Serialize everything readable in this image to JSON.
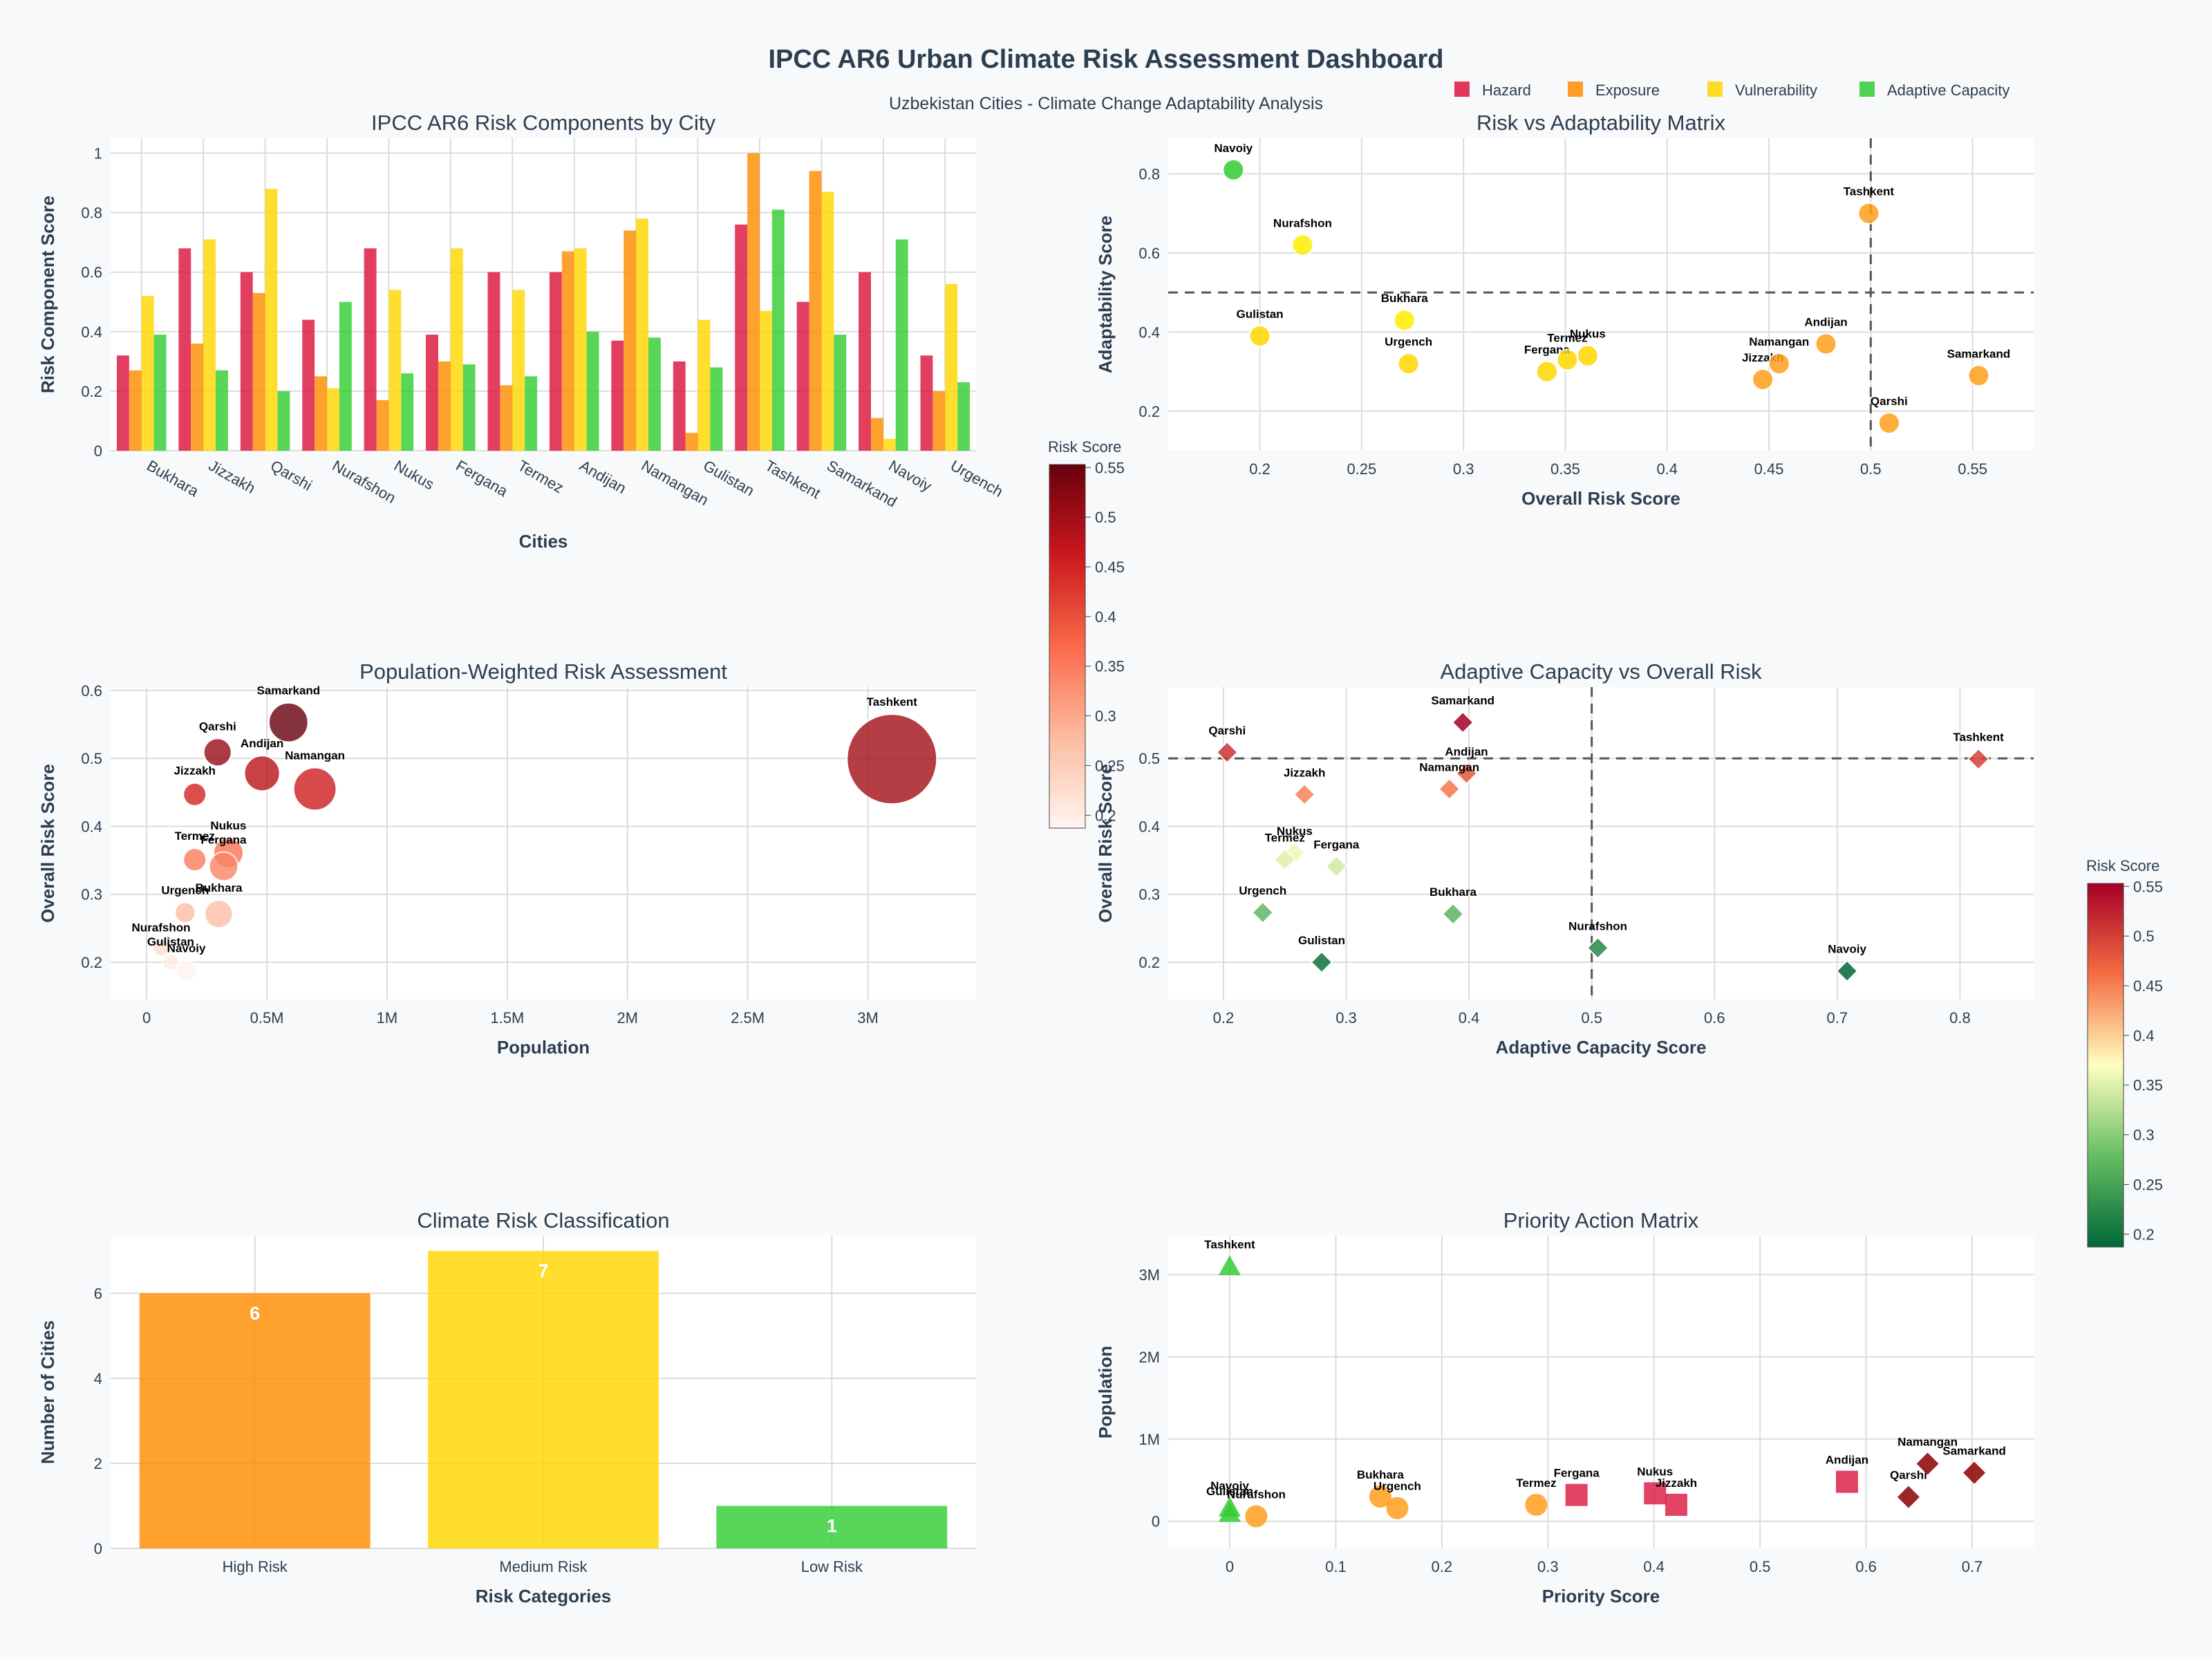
{
  "title": "IPCC AR6 Urban Climate Risk Assessment Dashboard",
  "subtitle": "Uzbekistan Cities - Climate Change Adaptability Analysis",
  "colors": {
    "hazard": "#DC143C",
    "exposure": "#FF8C00",
    "vulnerability": "#FFD700",
    "adaptive": "#32CD32",
    "high_risk": "#FF8C00",
    "medium_risk": "#FFD700",
    "low_risk": "#32CD32"
  },
  "chart_data": [
    {
      "type": "bar",
      "title": "IPCC AR6 Risk Components by City",
      "xlabel": "Cities",
      "ylabel": "Risk Component Score",
      "ylim": [
        0,
        1.05
      ],
      "categories": [
        "Bukhara",
        "Jizzakh",
        "Qarshi",
        "Nurafshon",
        "Nukus",
        "Fergana",
        "Termez",
        "Andijan",
        "Namangan",
        "Gulistan",
        "Tashkent",
        "Samarkand",
        "Navoiy",
        "Urgench"
      ],
      "series": [
        {
          "name": "Hazard",
          "values": [
            0.32,
            0.68,
            0.6,
            0.44,
            0.68,
            0.39,
            0.6,
            0.6,
            0.37,
            0.3,
            0.76,
            0.5,
            0.6,
            0.32
          ]
        },
        {
          "name": "Exposure",
          "values": [
            0.27,
            0.36,
            0.53,
            0.25,
            0.17,
            0.3,
            0.22,
            0.67,
            0.74,
            0.06,
            1.0,
            0.94,
            0.11,
            0.2
          ]
        },
        {
          "name": "Vulnerability",
          "values": [
            0.52,
            0.71,
            0.88,
            0.21,
            0.54,
            0.68,
            0.54,
            0.68,
            0.78,
            0.44,
            0.47,
            0.87,
            0.04,
            0.56
          ]
        },
        {
          "name": "Adaptive Capacity",
          "values": [
            0.39,
            0.27,
            0.2,
            0.5,
            0.26,
            0.29,
            0.25,
            0.4,
            0.38,
            0.28,
            0.81,
            0.39,
            0.71,
            0.23
          ]
        }
      ],
      "legend": "top-right"
    },
    {
      "type": "scatter",
      "title": "Risk vs Adaptability Matrix",
      "xlabel": "Overall Risk Score",
      "ylabel": "Adaptability Score",
      "xlim": [
        0.155,
        0.58
      ],
      "ylim": [
        0.1,
        0.89
      ],
      "reference_lines": {
        "x": 0.5,
        "y": 0.5
      },
      "points": [
        {
          "name": "Navoiy",
          "x": 0.187,
          "y": 0.81,
          "color": "#32CD32"
        },
        {
          "name": "Nurafshon",
          "x": 0.221,
          "y": 0.62,
          "color": "#FFEE00"
        },
        {
          "name": "Gulistan",
          "x": 0.2,
          "y": 0.39,
          "color": "#FFD700"
        },
        {
          "name": "Bukhara",
          "x": 0.271,
          "y": 0.43,
          "color": "#FFEE00"
        },
        {
          "name": "Urgench",
          "x": 0.273,
          "y": 0.32,
          "color": "#FFD700"
        },
        {
          "name": "Fergana",
          "x": 0.341,
          "y": 0.3,
          "color": "#FFD700"
        },
        {
          "name": "Termez",
          "x": 0.351,
          "y": 0.33,
          "color": "#FFD700"
        },
        {
          "name": "Nukus",
          "x": 0.361,
          "y": 0.34,
          "color": "#FFD700"
        },
        {
          "name": "Jizzakh",
          "x": 0.447,
          "y": 0.28,
          "color": "#FF9F1C"
        },
        {
          "name": "Namangan",
          "x": 0.455,
          "y": 0.32,
          "color": "#FF9F1C"
        },
        {
          "name": "Andijan",
          "x": 0.478,
          "y": 0.37,
          "color": "#FF9F1C"
        },
        {
          "name": "Tashkent",
          "x": 0.499,
          "y": 0.7,
          "color": "#FF9F1C"
        },
        {
          "name": "Qarshi",
          "x": 0.509,
          "y": 0.17,
          "color": "#FF9F1C"
        },
        {
          "name": "Samarkand",
          "x": 0.553,
          "y": 0.29,
          "color": "#FF9F1C"
        }
      ]
    },
    {
      "type": "scatter",
      "title": "Population-Weighted Risk Assessment",
      "xlabel": "Population",
      "ylabel": "Overall Risk Score",
      "xlim": [
        -150000,
        3450000
      ],
      "ylim": [
        0.145,
        0.605
      ],
      "colorbar": {
        "title": "Risk Score",
        "min": 0.187,
        "max": 0.553
      },
      "points": [
        {
          "name": "Samarkand",
          "x": 590000,
          "y": 0.553
        },
        {
          "name": "Qarshi",
          "x": 295000,
          "y": 0.509
        },
        {
          "name": "Andijan",
          "x": 480000,
          "y": 0.478
        },
        {
          "name": "Namangan",
          "x": 700000,
          "y": 0.455
        },
        {
          "name": "Jizzakh",
          "x": 200000,
          "y": 0.447
        },
        {
          "name": "Nukus",
          "x": 340000,
          "y": 0.361
        },
        {
          "name": "Termez",
          "x": 200000,
          "y": 0.351
        },
        {
          "name": "Fergana",
          "x": 320000,
          "y": 0.341
        },
        {
          "name": "Urgench",
          "x": 160000,
          "y": 0.273
        },
        {
          "name": "Bukhara",
          "x": 300000,
          "y": 0.271
        },
        {
          "name": "Nurafshon",
          "x": 60000,
          "y": 0.221
        },
        {
          "name": "Gulistan",
          "x": 100000,
          "y": 0.2
        },
        {
          "name": "Navoiy",
          "x": 165000,
          "y": 0.187
        },
        {
          "name": "Tashkent",
          "x": 3100000,
          "y": 0.499
        }
      ]
    },
    {
      "type": "scatter",
      "title": "Adaptive Capacity vs Overall Risk",
      "xlabel": "Adaptive Capacity Score",
      "ylabel": "Overall Risk Score",
      "xlim": [
        0.155,
        0.86
      ],
      "ylim": [
        0.145,
        0.605
      ],
      "reference_lines": {
        "x": 0.5,
        "y": 0.5
      },
      "colorbar": {
        "title": "Risk Score",
        "min": 0.187,
        "max": 0.553
      },
      "points": [
        {
          "name": "Qarshi",
          "x": 0.203,
          "y": 0.509
        },
        {
          "name": "Samarkand",
          "x": 0.395,
          "y": 0.553
        },
        {
          "name": "Andijan",
          "x": 0.398,
          "y": 0.478
        },
        {
          "name": "Namangan",
          "x": 0.384,
          "y": 0.455
        },
        {
          "name": "Jizzakh",
          "x": 0.266,
          "y": 0.447
        },
        {
          "name": "Nukus",
          "x": 0.258,
          "y": 0.361
        },
        {
          "name": "Termez",
          "x": 0.25,
          "y": 0.351
        },
        {
          "name": "Fergana",
          "x": 0.292,
          "y": 0.341
        },
        {
          "name": "Urgench",
          "x": 0.232,
          "y": 0.273
        },
        {
          "name": "Bukhara",
          "x": 0.387,
          "y": 0.271
        },
        {
          "name": "Gulistan",
          "x": 0.28,
          "y": 0.2
        },
        {
          "name": "Nurafshon",
          "x": 0.505,
          "y": 0.221
        },
        {
          "name": "Navoiy",
          "x": 0.708,
          "y": 0.187
        },
        {
          "name": "Tashkent",
          "x": 0.815,
          "y": 0.499
        }
      ]
    },
    {
      "type": "bar",
      "title": "Climate Risk Classification",
      "xlabel": "Risk Categories",
      "ylabel": "Number of Cities",
      "ylim": [
        0,
        7.35
      ],
      "categories": [
        "High Risk",
        "Medium Risk",
        "Low Risk"
      ],
      "values": [
        6,
        7,
        1
      ]
    },
    {
      "type": "scatter",
      "title": "Priority Action Matrix",
      "xlabel": "Priority Score",
      "ylabel": "Population",
      "xlim": [
        -0.058,
        0.758
      ],
      "ylim": [
        -330000,
        3470000
      ],
      "points": [
        {
          "name": "Tashkent",
          "x": 0.0,
          "y": 3100000,
          "marker": "triangle",
          "color": "#32CD32"
        },
        {
          "name": "Navoiy",
          "x": 0.0,
          "y": 165000,
          "marker": "triangle",
          "color": "#32CD32"
        },
        {
          "name": "Gulistan",
          "x": 0.0,
          "y": 100000,
          "marker": "triangle",
          "color": "#32CD32"
        },
        {
          "name": "Nurafshon",
          "x": 0.025,
          "y": 60000,
          "marker": "circle",
          "color": "#FF9F1C"
        },
        {
          "name": "Bukhara",
          "x": 0.142,
          "y": 300000,
          "marker": "circle",
          "color": "#FF9F1C"
        },
        {
          "name": "Urgench",
          "x": 0.158,
          "y": 160000,
          "marker": "circle",
          "color": "#FF9F1C"
        },
        {
          "name": "Termez",
          "x": 0.289,
          "y": 200000,
          "marker": "circle",
          "color": "#FF9F1C"
        },
        {
          "name": "Fergana",
          "x": 0.327,
          "y": 320000,
          "marker": "square",
          "color": "#DC143C"
        },
        {
          "name": "Nukus",
          "x": 0.401,
          "y": 340000,
          "marker": "square",
          "color": "#DC143C"
        },
        {
          "name": "Jizzakh",
          "x": 0.421,
          "y": 200000,
          "marker": "square",
          "color": "#DC143C"
        },
        {
          "name": "Andijan",
          "x": 0.582,
          "y": 480000,
          "marker": "square",
          "color": "#DC143C"
        },
        {
          "name": "Qarshi",
          "x": 0.64,
          "y": 295000,
          "marker": "diamond",
          "color": "#8B0000"
        },
        {
          "name": "Namangan",
          "x": 0.658,
          "y": 700000,
          "marker": "diamond",
          "color": "#8B0000"
        },
        {
          "name": "Samarkand",
          "x": 0.702,
          "y": 590000,
          "marker": "diamond",
          "color": "#8B0000"
        }
      ]
    }
  ]
}
